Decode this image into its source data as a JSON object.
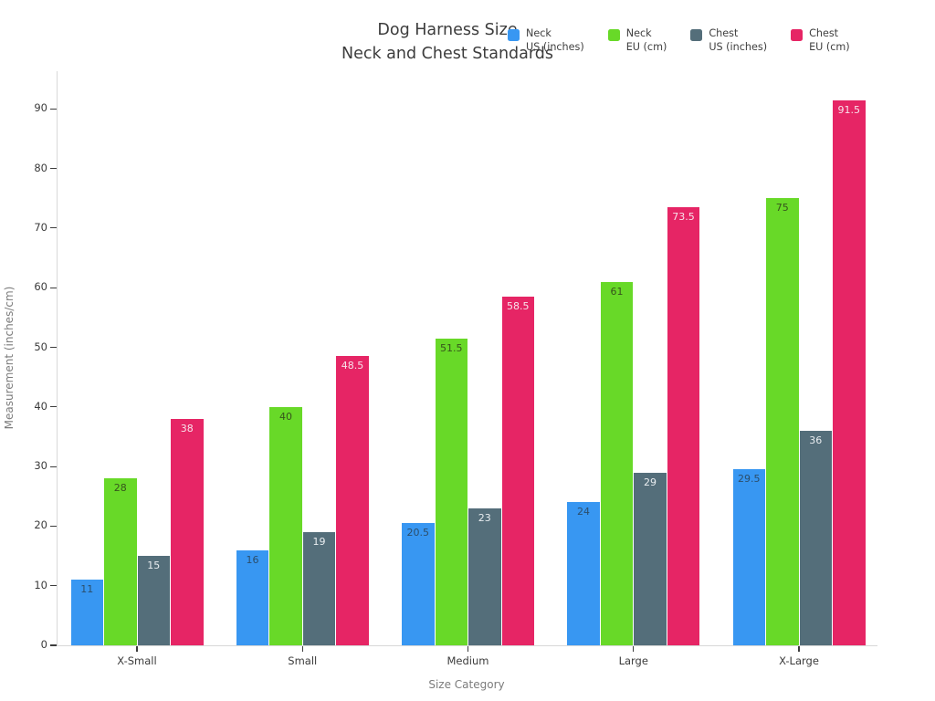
{
  "chart_data": {
    "type": "bar",
    "title": "Dog Harness Size",
    "subtitle": "Neck and Chest Standards",
    "xlabel": "Size Category",
    "ylabel": "Measurement (inches/cm)",
    "categories": [
      "X-Small",
      "Small",
      "Medium",
      "Large",
      "X-Large"
    ],
    "series": [
      {
        "name": "Neck US (inches)",
        "legend_lines": [
          "Neck",
          "US (inches)"
        ],
        "color": "#3897f2",
        "label_color": "#2c4e6b",
        "values": [
          11,
          16,
          20.5,
          24,
          29.5
        ]
      },
      {
        "name": "Neck EU (cm)",
        "legend_lines": [
          "Neck",
          "EU (cm)"
        ],
        "color": "#68d928",
        "label_color": "#36541c",
        "values": [
          28,
          40,
          51.5,
          61,
          75
        ]
      },
      {
        "name": "Chest US (inches)",
        "legend_lines": [
          "Chest",
          "US (inches)"
        ],
        "color": "#546e7a",
        "label_color": "#e9edf0",
        "values": [
          15,
          19,
          23,
          29,
          36
        ]
      },
      {
        "name": "Chest EU (cm)",
        "legend_lines": [
          "Chest",
          "EU (cm)"
        ],
        "color": "#e62565",
        "label_color": "#f7e3eb",
        "values": [
          38,
          48.5,
          58.5,
          73.5,
          91.5
        ]
      }
    ],
    "yaxis": {
      "min": 0,
      "max": 90,
      "step": 10
    },
    "ylim": [
      0,
      96
    ],
    "grid": false,
    "legend_position": "top-right",
    "style": {
      "title_color": "#3c3c3c",
      "tick_label_color": "#3b3b3b",
      "axis_title_color": "#7c7c7c",
      "axis_line_color": "#d8d8d8",
      "tick_mark_color": "#3c3c3c",
      "background": "#ffffff"
    }
  }
}
